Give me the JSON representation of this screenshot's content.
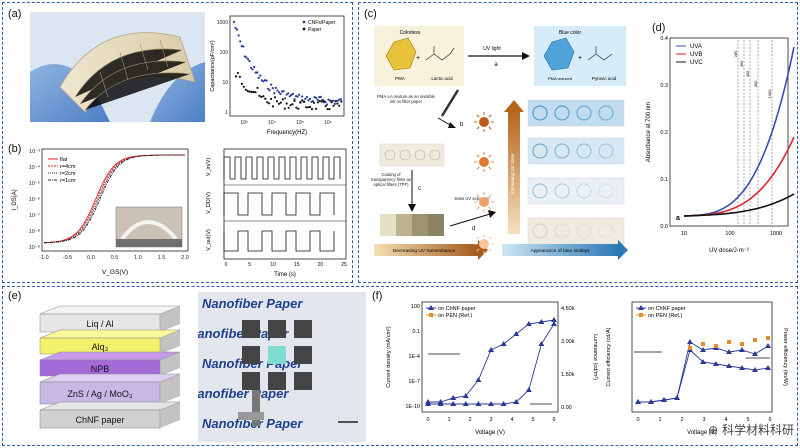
{
  "panel_labels": {
    "a": "(a)",
    "b": "(b)",
    "c": "(c)",
    "d": "(d)",
    "e": "(e)",
    "f": "(f)"
  },
  "panel_a": {
    "ylabel": "Capacitance(pF/cm²)",
    "xlabel": "Frequency(HZ)",
    "legend": [
      "CNFs/Paper",
      "Paper"
    ],
    "yticks": [
      "1",
      "10",
      "100",
      "1000"
    ],
    "xticks": [
      "10³",
      "10⁴",
      "10⁵",
      "10⁶"
    ]
  },
  "panel_b": {
    "ylabel": "I_DS(A)",
    "xlabel": "V_GS(V)",
    "legend": [
      "flat",
      "r=4cm",
      "r=2cm",
      "r=1cm"
    ],
    "yticks": [
      "10⁻³",
      "10⁻⁴",
      "10⁻⁵",
      "10⁻⁶",
      "10⁻⁷",
      "10⁻⁸",
      "10⁻⁹"
    ],
    "xticks": [
      "-1.0",
      "-0.5",
      "0.0",
      "0.5",
      "1.0",
      "1.5",
      "2.0"
    ],
    "right_ylabels": [
      "V_in(V)",
      "V_DD(V)",
      "V_out(V)"
    ],
    "right_xlabel": "Time (s)",
    "right_xticks": [
      "0",
      "5",
      "10",
      "15",
      "20",
      "25"
    ]
  },
  "panel_c": {
    "colorless": "Colorless",
    "blue_color": "Blue color",
    "uv_light": "UV light",
    "a": "a",
    "b": "b",
    "c": "c",
    "d": "d",
    "pma": "PMA",
    "lactic": "Lactic acid",
    "pma_reduced": "PMA reduced",
    "pyruvic": "Pyruvic acid",
    "pma_la": "PMA-LA mixture as an invisible ink on filter paper",
    "coating": "Coating of transparency films as optical filters (TPF)",
    "solar": "Solar UV exposure",
    "decreasing": "Decreasing UV transmittance",
    "appearance": "Appearance of blue smileys",
    "increasing": "Increasing UV dose"
  },
  "panel_d": {
    "legend": [
      "UVA",
      "UVB",
      "UVC"
    ],
    "ylabel": "Absorbance at 700 nm",
    "xlabel": "UV dose/J·m⁻²",
    "yticks": [
      "0.0",
      "0.1",
      "0.2",
      "0.3",
      "0.4"
    ],
    "xticks": [
      "10",
      "100",
      "1000"
    ],
    "annot": "a",
    "vlabels": [
      "280",
      "360",
      "400",
      "450",
      "1000"
    ],
    "colors": {
      "UVA": "#3a4cb8",
      "UVB": "#d9262e",
      "UVC": "#111111"
    }
  },
  "panel_e": {
    "layers": [
      "Liq / Al",
      "Alq₃",
      "NPB",
      "ZnS / Ag / MoO₃",
      "ChNF paper"
    ],
    "photo_text": [
      "Nanofiber Paper",
      "Nanofiber Paper",
      "Nanofiber Paper",
      "Nanofiber Paper",
      "Nanofiber Paper"
    ]
  },
  "panel_f": {
    "left": {
      "legend": [
        "on ChNF paper",
        "on PEN (Ref.)"
      ],
      "ylabel": "Current density (mA/cm²)",
      "ylabel2": "Luminance (cd/m²)",
      "xlabel": "Voltage (V)",
      "yticks": [
        "100",
        "0.1",
        "1E-4",
        "1E-7",
        "1E-10"
      ],
      "y2ticks": [
        "4.50k",
        "3.00k",
        "1.50k",
        "0.00"
      ],
      "xticks": [
        "0",
        "1",
        "2",
        "3",
        "4",
        "5",
        "6"
      ]
    },
    "right": {
      "legend": [
        "on ChNF paper",
        "on PEN (Ref.)"
      ],
      "ylabel": "Current efficiency (cd/A)",
      "ylabel2": "Power efficiency (lm/W)",
      "xlabel": "Voltage (V)",
      "xticks": [
        "0",
        "1",
        "2",
        "3",
        "4",
        "5",
        "6"
      ]
    }
  },
  "watermark": "⊕ 科学材料科研"
}
